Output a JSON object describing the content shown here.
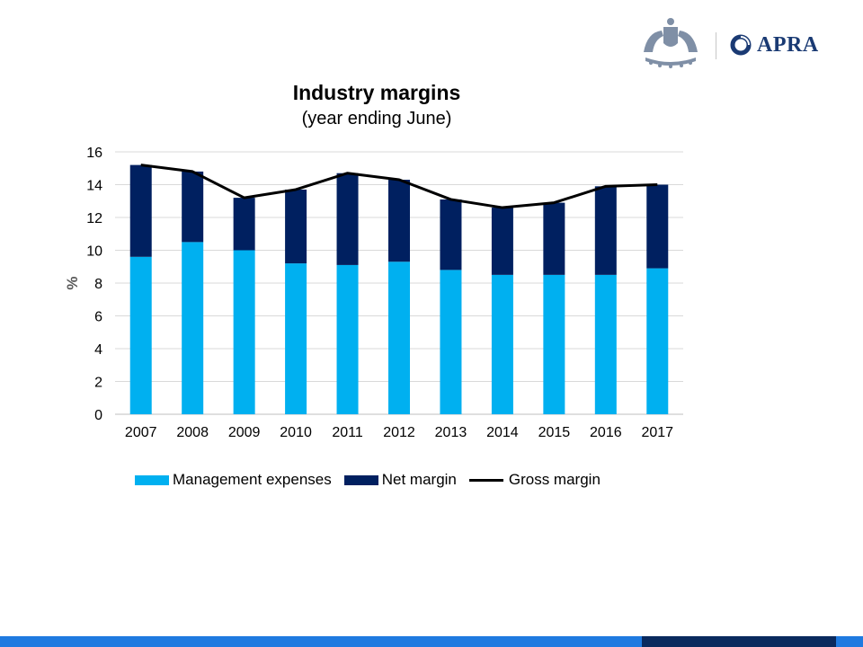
{
  "header": {
    "logos": [
      {
        "name": "crest-logo",
        "icon": "commonwealth-coat-of-arms-icon"
      },
      {
        "name": "apra-logo",
        "icon": "apra-ring-icon",
        "text": "APRA"
      }
    ]
  },
  "colors": {
    "management_expenses": "#00b0f0",
    "net_margin": "#002060",
    "gross_margin": "#000000",
    "grid": "#d9d9d9",
    "footer_light": "#1f7ae0",
    "footer_dark": "#0a2a5e"
  },
  "chart_data": {
    "type": "bar",
    "stacked": true,
    "title": "Industry margins",
    "subtitle": "(year ending June)",
    "ylabel": "%",
    "xlabel": "",
    "ylim": [
      0,
      16
    ],
    "yticks": [
      0,
      2,
      4,
      6,
      8,
      10,
      12,
      14,
      16
    ],
    "grid": true,
    "legend_position": "bottom",
    "categories": [
      "2007",
      "2008",
      "2009",
      "2010",
      "2011",
      "2012",
      "2013",
      "2014",
      "2015",
      "2016",
      "2017"
    ],
    "series": [
      {
        "name": "Management expenses",
        "type": "bar",
        "values": [
          9.6,
          10.5,
          10.0,
          9.2,
          9.1,
          9.3,
          8.8,
          8.5,
          8.5,
          8.5,
          8.9
        ]
      },
      {
        "name": "Net margin",
        "type": "bar",
        "values": [
          5.6,
          4.3,
          3.2,
          4.5,
          5.6,
          5.0,
          4.3,
          4.1,
          4.4,
          5.4,
          5.1
        ]
      },
      {
        "name": "Gross margin",
        "type": "line",
        "values": [
          15.2,
          14.8,
          13.2,
          13.7,
          14.7,
          14.3,
          13.1,
          12.6,
          12.9,
          13.9,
          14.0
        ]
      }
    ]
  }
}
